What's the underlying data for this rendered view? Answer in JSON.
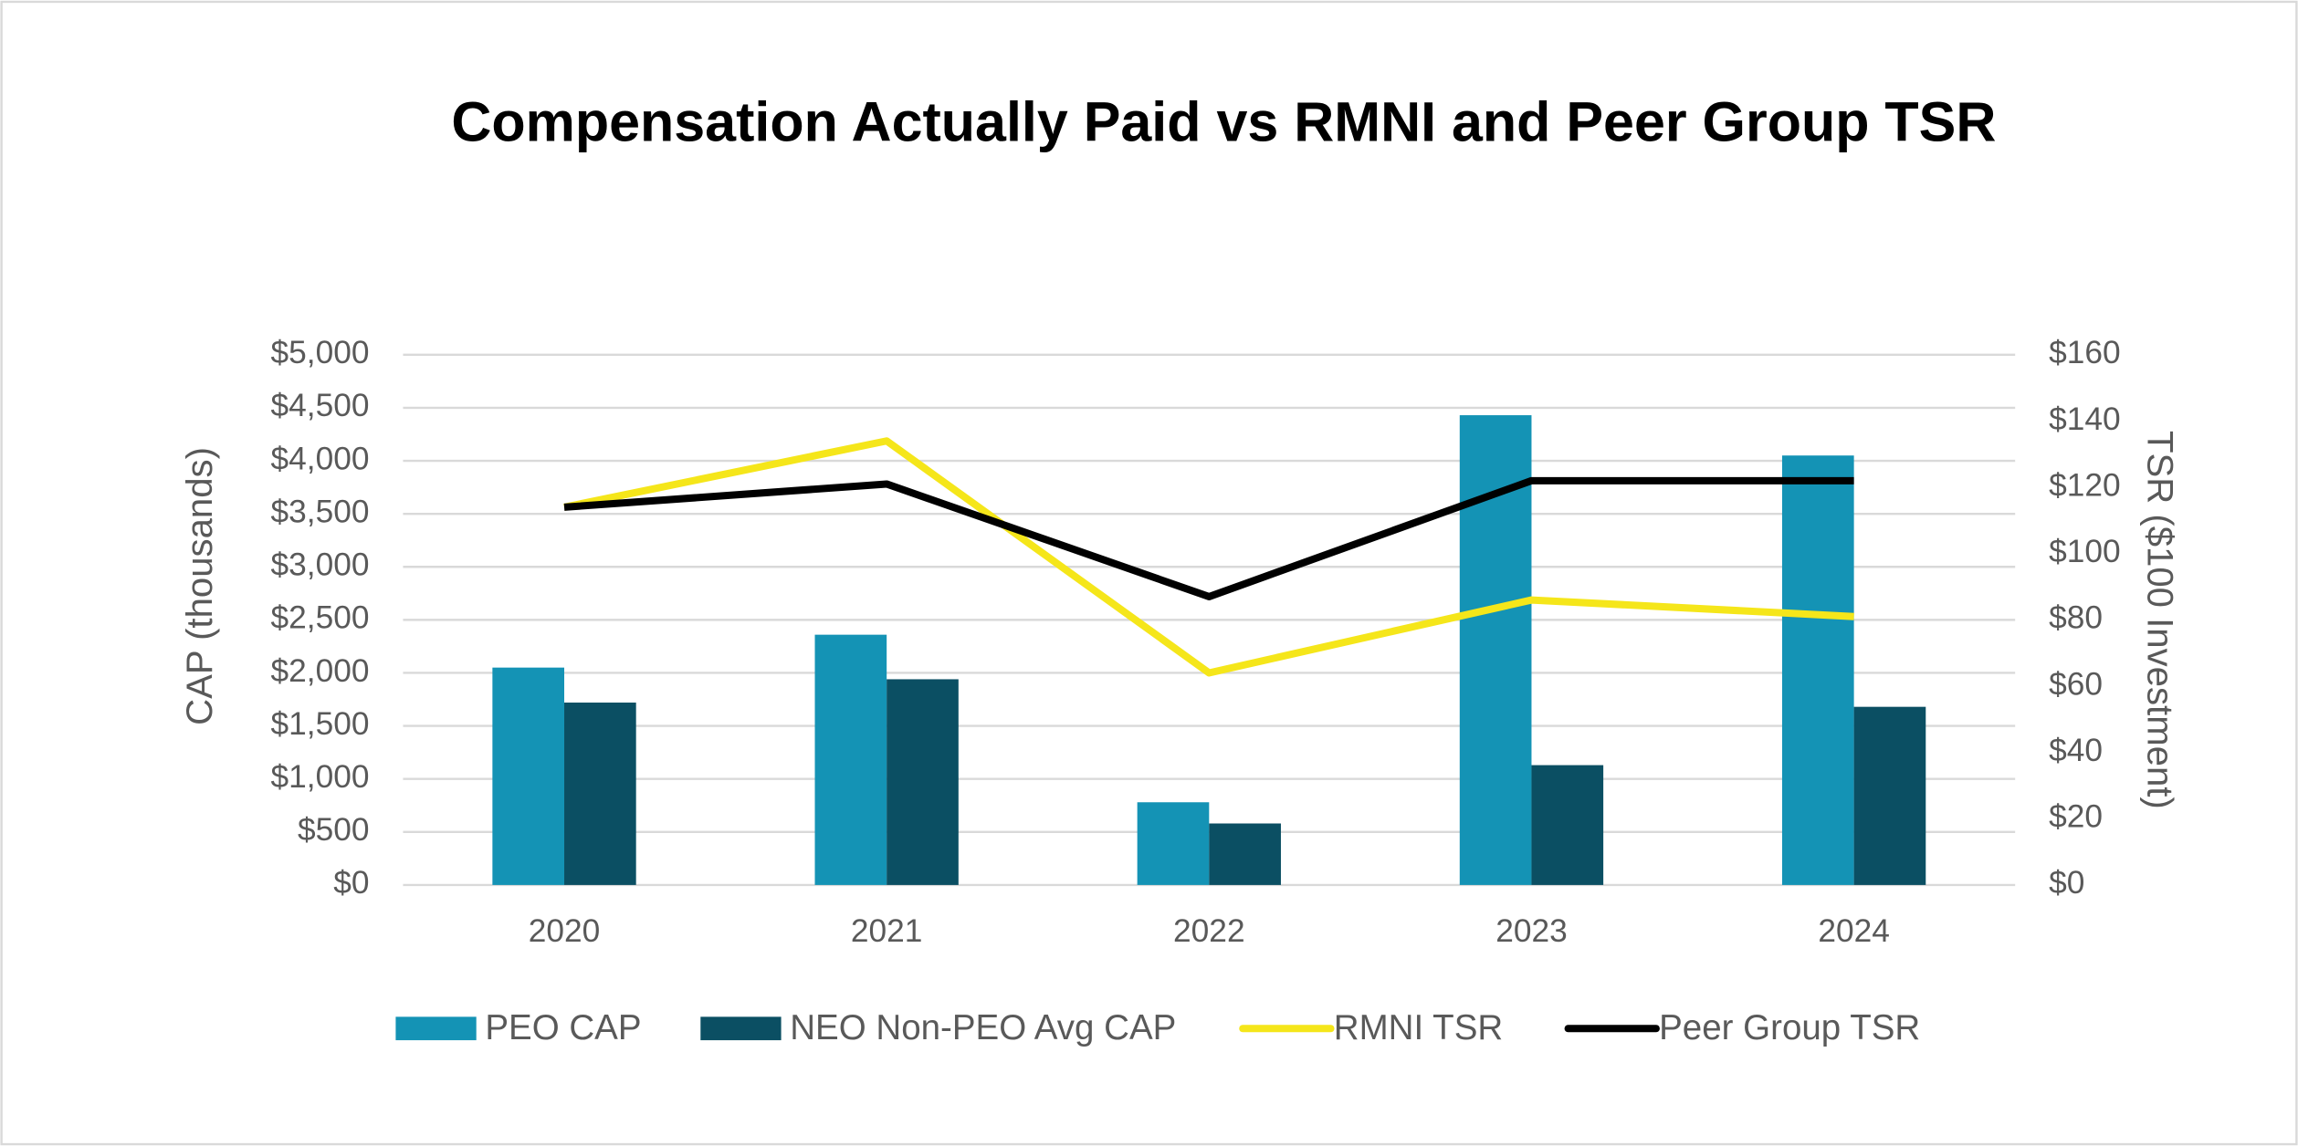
{
  "chart_data": {
    "type": "bar-line",
    "title": "Compensation Actually Paid vs RMNI and Peer Group TSR",
    "y_label": "CAP (thousands)",
    "y2_label": "TSR ($100 Investment)",
    "categories": [
      "2020",
      "2021",
      "2022",
      "2023",
      "2024"
    ],
    "series": [
      {
        "name": "PEO CAP",
        "type": "bar",
        "color": "#1493b5",
        "values": [
          2050,
          2360,
          780,
          4430,
          4050
        ]
      },
      {
        "name": "NEO Non-PEO Avg CAP",
        "type": "bar",
        "color": "#0b4f63",
        "values": [
          1720,
          1940,
          580,
          1130,
          1680
        ]
      },
      {
        "name": "RMNI TSR",
        "type": "line",
        "axis": "y2",
        "color": "#f5e61a",
        "values": [
          114,
          134,
          64,
          86,
          81
        ]
      },
      {
        "name": "Peer Group TSR",
        "type": "line",
        "axis": "y2",
        "color": "#000000",
        "values": [
          114,
          121,
          87,
          122,
          122
        ]
      }
    ],
    "ylim": [
      0,
      5000
    ],
    "yticks": [
      {
        "value": 0,
        "label": "$0"
      },
      {
        "value": 500,
        "label": "$500"
      },
      {
        "value": 1000,
        "label": "$1,000"
      },
      {
        "value": 1500,
        "label": "$1,500"
      },
      {
        "value": 2000,
        "label": "$2,000"
      },
      {
        "value": 2500,
        "label": "$2,500"
      },
      {
        "value": 3000,
        "label": "$3,000"
      },
      {
        "value": 3500,
        "label": "$3,500"
      },
      {
        "value": 4000,
        "label": "$4,000"
      },
      {
        "value": 4500,
        "label": "$4,500"
      },
      {
        "value": 5000,
        "label": "$5,000"
      }
    ],
    "y2lim": [
      0,
      160
    ],
    "y2ticks": [
      {
        "value": 0,
        "label": "$0"
      },
      {
        "value": 20,
        "label": "$20"
      },
      {
        "value": 40,
        "label": "$40"
      },
      {
        "value": 60,
        "label": "$60"
      },
      {
        "value": 80,
        "label": "$80"
      },
      {
        "value": 100,
        "label": "$100"
      },
      {
        "value": 120,
        "label": "$120"
      },
      {
        "value": 140,
        "label": "$140"
      },
      {
        "value": 160,
        "label": "$160"
      }
    ],
    "grid": true,
    "legend": "bottom"
  }
}
